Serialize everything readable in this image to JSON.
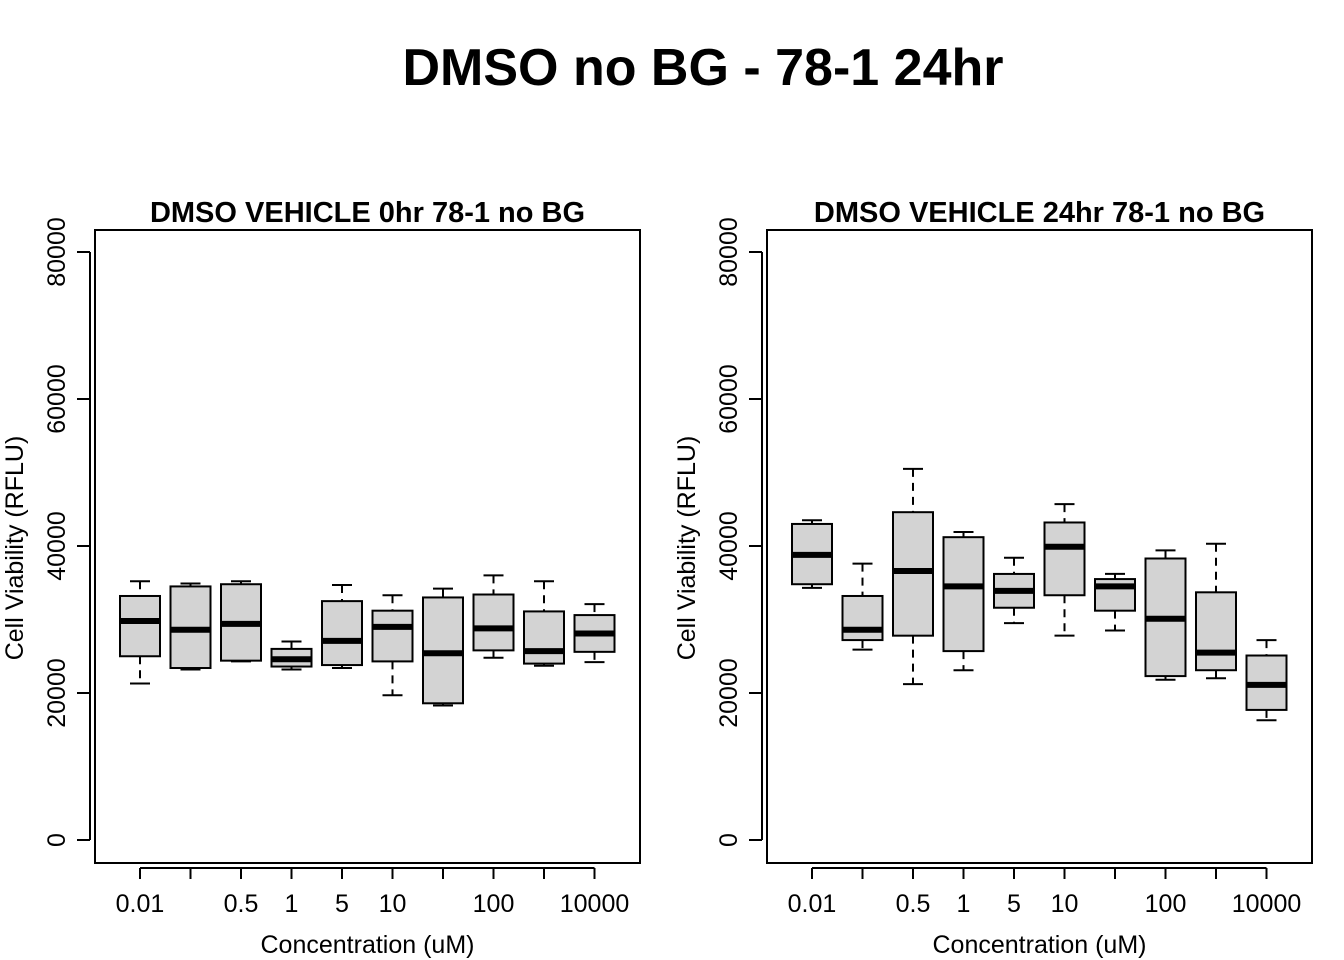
{
  "figure": {
    "title": "DMSO no BG - 78-1 24hr"
  },
  "chart_data": [
    {
      "type": "boxplot",
      "title": "DMSO VEHICLE 0hr 78-1 no BG",
      "xlabel": "Concentration (uM)",
      "ylabel": "Cell Viability (RFLU)",
      "ylim": [
        0,
        80000
      ],
      "yticks": [
        "0",
        "20000",
        "40000",
        "60000",
        "80000"
      ],
      "categories": [
        "0.01",
        "",
        "0.5",
        "1",
        "5",
        "10",
        "",
        "100",
        "",
        "10000"
      ],
      "boxes": [
        {
          "min": 21300,
          "q1": 25000,
          "median": 29800,
          "q3": 33200,
          "max": 35200
        },
        {
          "min": 23200,
          "q1": 23400,
          "median": 28600,
          "q3": 34500,
          "max": 34900
        },
        {
          "min": 24300,
          "q1": 24400,
          "median": 29400,
          "q3": 34800,
          "max": 35200
        },
        {
          "min": 23200,
          "q1": 23600,
          "median": 24600,
          "q3": 26000,
          "max": 27000
        },
        {
          "min": 23400,
          "q1": 23800,
          "median": 27100,
          "q3": 32500,
          "max": 34700
        },
        {
          "min": 19700,
          "q1": 24300,
          "median": 29000,
          "q3": 31200,
          "max": 33300
        },
        {
          "min": 18300,
          "q1": 18600,
          "median": 25400,
          "q3": 33000,
          "max": 34200
        },
        {
          "min": 24800,
          "q1": 25800,
          "median": 28800,
          "q3": 33400,
          "max": 36000
        },
        {
          "min": 23700,
          "q1": 24000,
          "median": 25700,
          "q3": 31100,
          "max": 35200
        },
        {
          "min": 24200,
          "q1": 25600,
          "median": 28100,
          "q3": 30600,
          "max": 32100
        }
      ]
    },
    {
      "type": "boxplot",
      "title": "DMSO VEHICLE 24hr 78-1 no BG",
      "xlabel": "Concentration (uM)",
      "ylabel": "Cell Viability (RFLU)",
      "ylim": [
        0,
        80000
      ],
      "yticks": [
        "0",
        "20000",
        "40000",
        "60000",
        "80000"
      ],
      "categories": [
        "0.01",
        "",
        "0.5",
        "1",
        "5",
        "10",
        "",
        "100",
        "",
        "10000"
      ],
      "boxes": [
        {
          "min": 34300,
          "q1": 34800,
          "median": 38800,
          "q3": 43000,
          "max": 43500
        },
        {
          "min": 25900,
          "q1": 27200,
          "median": 28600,
          "q3": 33200,
          "max": 37600
        },
        {
          "min": 21200,
          "q1": 27800,
          "median": 36600,
          "q3": 44600,
          "max": 50500
        },
        {
          "min": 23100,
          "q1": 25700,
          "median": 34500,
          "q3": 41200,
          "max": 41900
        },
        {
          "min": 29500,
          "q1": 31600,
          "median": 33900,
          "q3": 36200,
          "max": 38400
        },
        {
          "min": 27800,
          "q1": 33300,
          "median": 39900,
          "q3": 43200,
          "max": 45700
        },
        {
          "min": 28500,
          "q1": 31200,
          "median": 34500,
          "q3": 35500,
          "max": 36200
        },
        {
          "min": 21800,
          "q1": 22300,
          "median": 30100,
          "q3": 38300,
          "max": 39400
        },
        {
          "min": 22000,
          "q1": 23100,
          "median": 25500,
          "q3": 33700,
          "max": 40300
        },
        {
          "min": 16300,
          "q1": 17700,
          "median": 21100,
          "q3": 25100,
          "max": 27200
        }
      ]
    }
  ]
}
